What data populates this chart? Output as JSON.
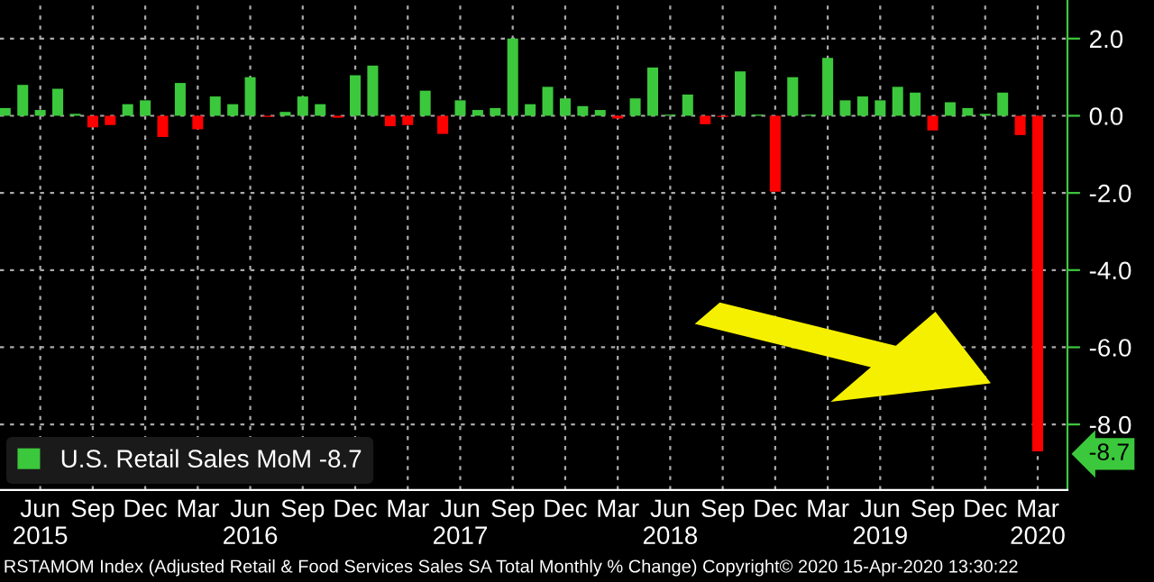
{
  "chart_data": {
    "type": "bar",
    "categories": [
      null,
      null,
      "Jun\n2015",
      null,
      null,
      "Sep",
      null,
      null,
      "Dec",
      null,
      null,
      "Mar",
      null,
      null,
      "Jun\n2016",
      null,
      null,
      "Sep",
      null,
      null,
      "Dec",
      null,
      null,
      "Mar",
      null,
      null,
      "Jun\n2017",
      null,
      null,
      "Sep",
      null,
      null,
      "Dec",
      null,
      null,
      "Mar",
      null,
      null,
      "Jun\n2018",
      null,
      null,
      "Sep",
      null,
      null,
      "Dec",
      null,
      null,
      "Mar",
      null,
      null,
      "Jun\n2019",
      null,
      null,
      "Sep",
      null,
      null,
      "Dec",
      null,
      null,
      "Mar\n2020"
    ],
    "series": [
      {
        "name": "U.S. Retail Sales MoM -8.7",
        "values": [
          0.2,
          0.8,
          0.15,
          0.7,
          0.05,
          -0.3,
          -0.24,
          0.3,
          0.4,
          -0.55,
          0.85,
          -0.35,
          0.5,
          0.3,
          1.0,
          -0.03,
          0.1,
          0.5,
          0.3,
          -0.05,
          1.05,
          1.3,
          -0.27,
          -0.24,
          0.65,
          -0.47,
          0.4,
          0.15,
          0.2,
          2.0,
          0.3,
          0.75,
          0.45,
          0.25,
          0.15,
          -0.07,
          0.45,
          1.25,
          0.03,
          0.55,
          -0.22,
          -0.03,
          1.15,
          0.03,
          -1.97,
          1.0,
          0.03,
          1.5,
          0.4,
          0.5,
          0.4,
          0.75,
          0.6,
          -0.38,
          0.35,
          0.2,
          0.05,
          0.6,
          -0.5,
          -8.7
        ],
        "colors": [
          "#3cc83c",
          "#3cc83c",
          "#3cc83c",
          "#3cc83c",
          "#3cc83c",
          "#ff0000",
          "#ff0000",
          "#3cc83c",
          "#3cc83c",
          "#ff0000",
          "#3cc83c",
          "#ff0000",
          "#3cc83c",
          "#3cc83c",
          "#3cc83c",
          "#ff0000",
          "#3cc83c",
          "#3cc83c",
          "#3cc83c",
          "#ff0000",
          "#3cc83c",
          "#3cc83c",
          "#ff0000",
          "#ff0000",
          "#3cc83c",
          "#ff0000",
          "#3cc83c",
          "#3cc83c",
          "#3cc83c",
          "#3cc83c",
          "#3cc83c",
          "#3cc83c",
          "#3cc83c",
          "#3cc83c",
          "#3cc83c",
          "#ff0000",
          "#3cc83c",
          "#3cc83c",
          "#3cc83c",
          "#3cc83c",
          "#ff0000",
          "#ff0000",
          "#3cc83c",
          "#3cc83c",
          "#ff0000",
          "#3cc83c",
          "#3cc83c",
          "#3cc83c",
          "#3cc83c",
          "#3cc83c",
          "#3cc83c",
          "#3cc83c",
          "#3cc83c",
          "#ff0000",
          "#3cc83c",
          "#3cc83c",
          "#3cc83c",
          "#3cc83c",
          "#ff0000",
          "#ff0000"
        ],
        "color": "#3cc83c"
      }
    ],
    "ylim": [
      -9.7,
      3.0
    ],
    "yticks": [
      {
        "value": 2,
        "label": "2.0"
      },
      {
        "value": 0,
        "label": "0.0"
      },
      {
        "value": -2,
        "label": "-2.0"
      },
      {
        "value": -4,
        "label": "-4.0"
      },
      {
        "value": -6,
        "label": "-6.0"
      },
      {
        "value": -8,
        "label": "-8.0"
      },
      {
        "value": -8.7,
        "label": "-8.7"
      }
    ],
    "grid": true,
    "legend": "bottom left",
    "annotations": [
      "RSTAMOM Index (Adjusted Retail & Food Services Sales SA Total Monthly % Change) Copyright© 2020 15-Apr-2020 13:30:22"
    ]
  }
}
